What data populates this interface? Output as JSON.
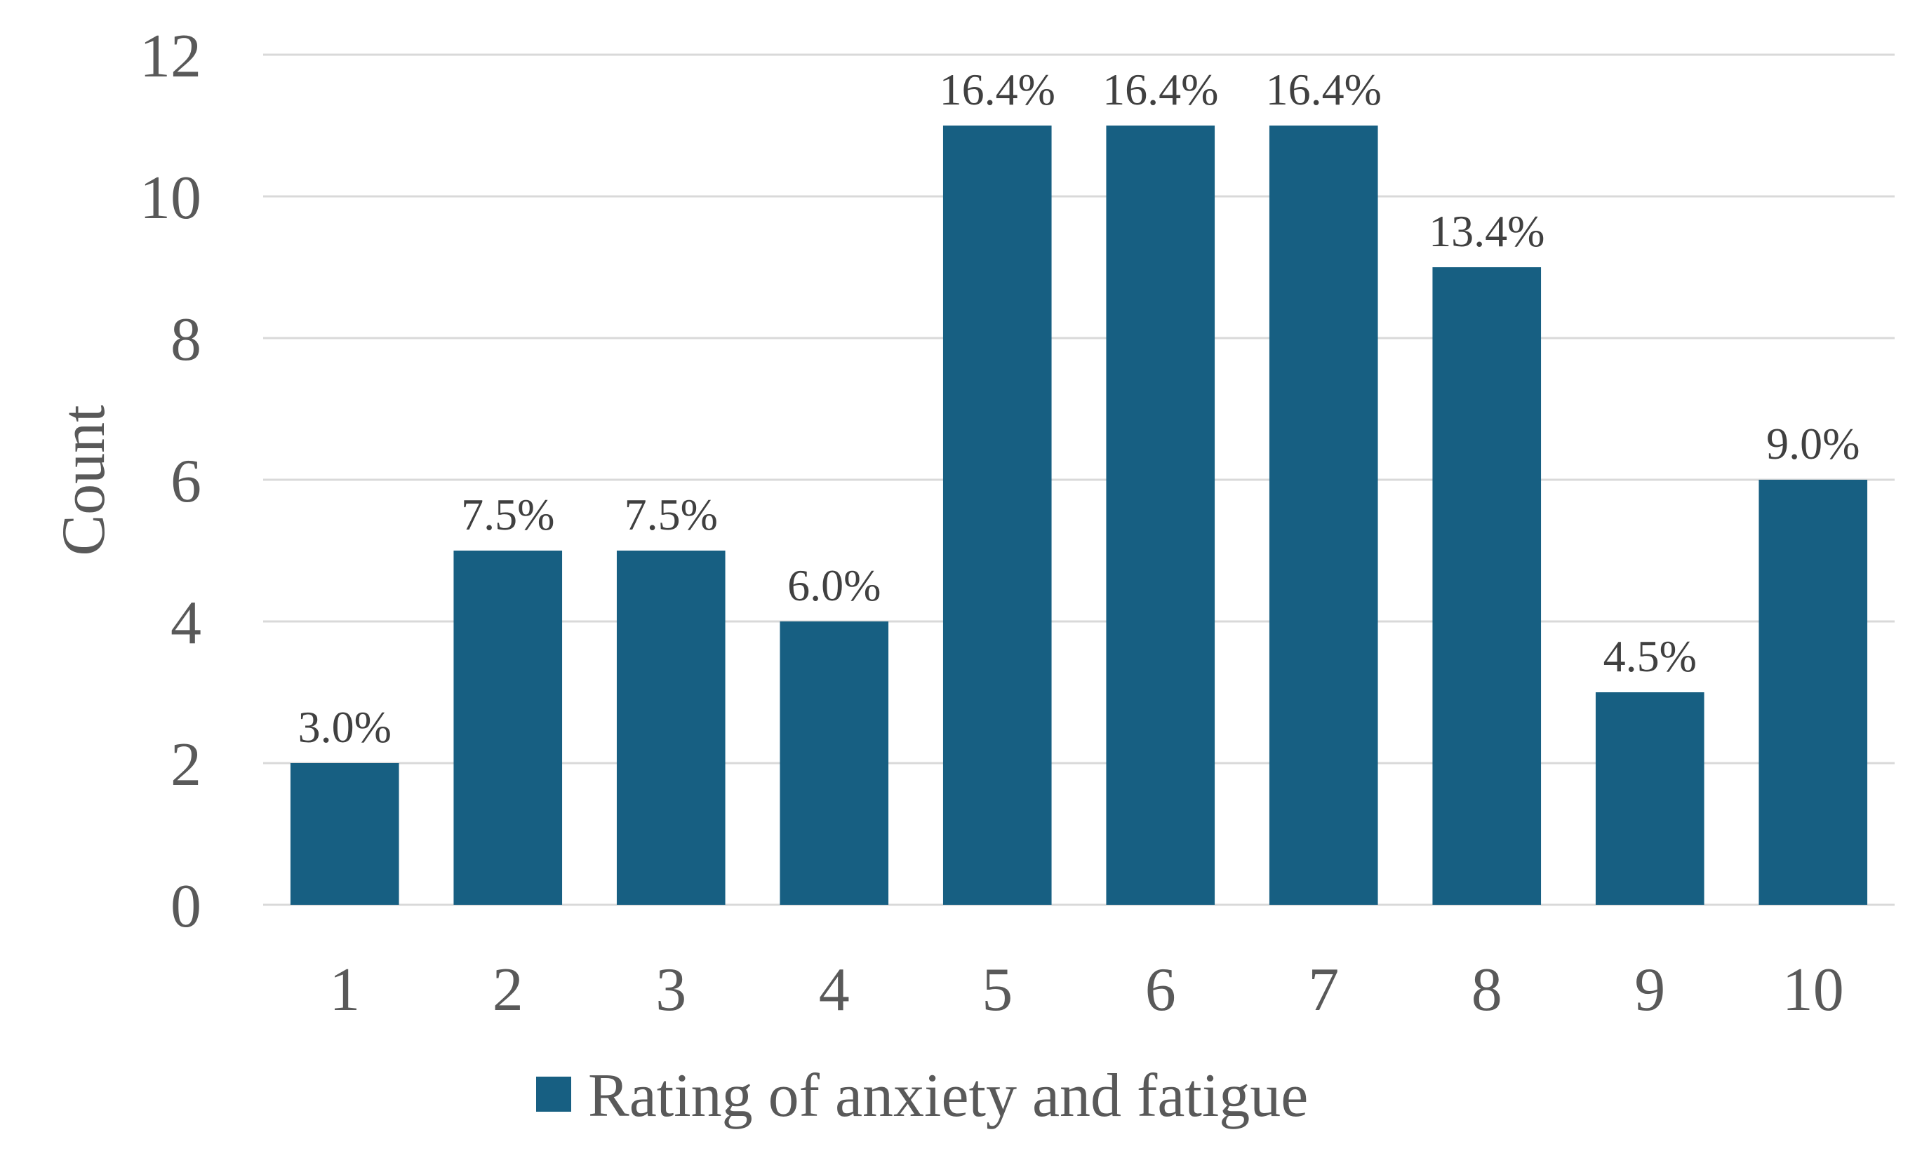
{
  "chart_data": {
    "type": "bar",
    "categories": [
      "1",
      "2",
      "3",
      "4",
      "5",
      "6",
      "7",
      "8",
      "9",
      "10"
    ],
    "series": [
      {
        "name": "Rating of anxiety and fatigue",
        "values": [
          2,
          5,
          5,
          4,
          11,
          11,
          11,
          9,
          3,
          6
        ],
        "labels": [
          "3.0%",
          "7.5%",
          "7.5%",
          "6.0%",
          "16.4%",
          "16.4%",
          "16.4%",
          "13.4%",
          "4.5%",
          "9.0%"
        ],
        "color": "#175f82"
      }
    ],
    "ylabel": "Count",
    "ylim": [
      0,
      12
    ],
    "yticks": [
      0,
      2,
      4,
      6,
      8,
      10,
      12
    ],
    "grid": true,
    "legend": "bottom-center"
  }
}
